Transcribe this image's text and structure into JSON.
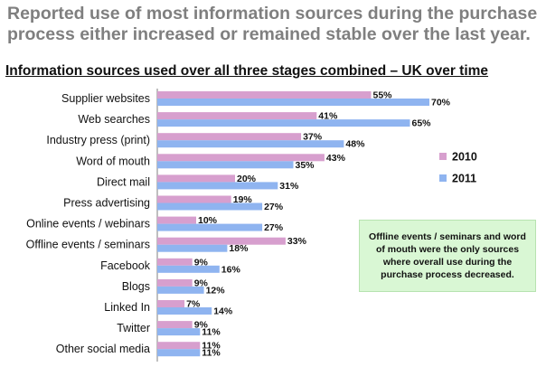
{
  "headline": "Reported use of most information sources during the purchase process either increased or remained stable over the last year.",
  "chart_data": {
    "type": "bar",
    "orientation": "horizontal",
    "title": "Information sources used over all three stages combined – UK over time",
    "categories": [
      "Supplier websites",
      "Web searches",
      "Industry press (print)",
      "Word of mouth",
      "Direct mail",
      "Press advertising",
      "Online events / webinars",
      "Offline events / seminars",
      "Facebook",
      "Blogs",
      "Linked In",
      "Twitter",
      "Other social media"
    ],
    "series": [
      {
        "name": "2010",
        "color": "#d79fce",
        "values": [
          55,
          41,
          37,
          43,
          20,
          19,
          10,
          33,
          9,
          9,
          7,
          9,
          11
        ]
      },
      {
        "name": "2011",
        "color": "#8fb4f0",
        "values": [
          70,
          65,
          48,
          35,
          31,
          27,
          27,
          18,
          16,
          12,
          14,
          11,
          11
        ]
      }
    ],
    "value_suffix": "%",
    "xlim": [
      0,
      100
    ],
    "grid": false,
    "legend_position": "right"
  },
  "callout": "Offline events / seminars and word of mouth were the only sources where overall use during the purchase process decreased."
}
